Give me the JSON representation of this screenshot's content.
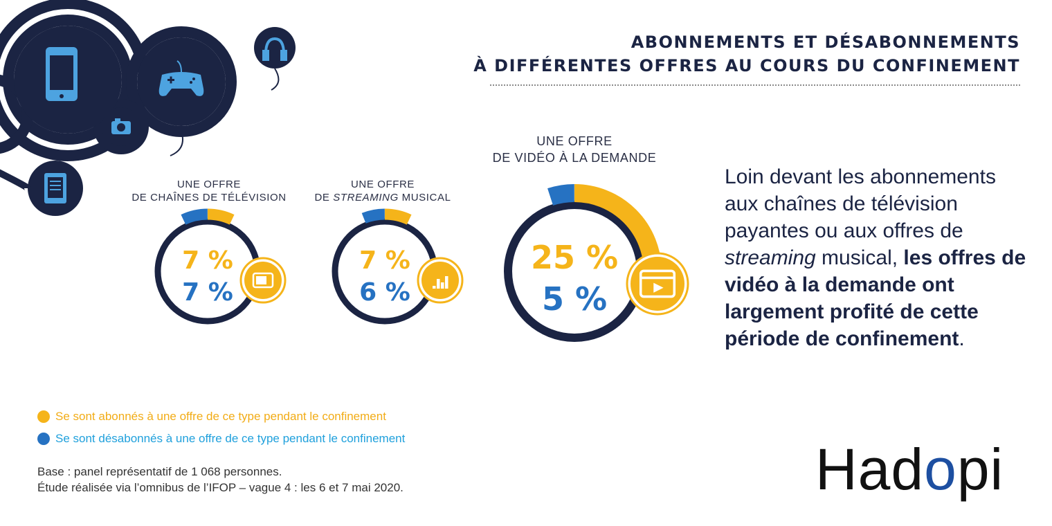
{
  "title": {
    "line1": "ABONNEMENTS ET DÉSABONNEMENTS",
    "line2": "À DIFFÉRENTES OFFRES AU COURS DU CONFINEMENT"
  },
  "colors": {
    "subscribed": "#f5b41a",
    "unsubscribed": "#2672c2",
    "navy": "#1b2443"
  },
  "deco_icons": [
    "smartphone-icon",
    "gamepad-icon",
    "headphones-icon",
    "camera-icon",
    "ebook-icon"
  ],
  "chart_data": {
    "type": "donut",
    "series_names": [
      "Se sont abonnés à une offre de ce type pendant le confinement",
      "Se sont désabonnés à une offre de ce type pendant le confinement"
    ],
    "categories": [
      {
        "label_line1": "UNE OFFRE",
        "label_line2_pre": "DE CHAÎNES DE TÉLÉVISION",
        "label_line2_italic": "",
        "label_line2_post": "",
        "subscribed": 7,
        "unsubscribed": 7,
        "subscribed_text": "7 %",
        "unsubscribed_text": "7 %",
        "icon": "tv-icon"
      },
      {
        "label_line1": "UNE OFFRE",
        "label_line2_pre": "DE ",
        "label_line2_italic": "STREAMING",
        "label_line2_post": " MUSICAL",
        "subscribed": 7,
        "unsubscribed": 6,
        "subscribed_text": "7 %",
        "unsubscribed_text": "6 %",
        "icon": "music-bars-icon"
      },
      {
        "label_line1": "UNE OFFRE",
        "label_line2_pre": "DE VIDÉO À LA DEMANDE",
        "label_line2_italic": "",
        "label_line2_post": "",
        "subscribed": 25,
        "unsubscribed": 5,
        "subscribed_text": "25 %",
        "unsubscribed_text": "5 %",
        "icon": "video-player-icon"
      }
    ]
  },
  "description": {
    "p1": "Loin devant les abonnements aux chaînes de télévision payantes ou aux offres de ",
    "italic": "streaming",
    "p2": " musical, ",
    "bold": "les offres de vidéo à la demande ont largement profité de cette période de confinement",
    "p3": "."
  },
  "legend": {
    "subscribed": "Se sont abonnés à une offre de ce type pendant le confinement",
    "unsubscribed": "Se sont désabonnés à une offre de ce type pendant le confinement"
  },
  "source": {
    "line1": "Base : panel représentatif de 1 068 personnes.",
    "line2": "Étude réalisée via l’omnibus de l’IFOP – vague 4 : les 6 et 7 mai 2020."
  },
  "logo": {
    "pre": "Had",
    "o": "o",
    "post": "pi"
  }
}
